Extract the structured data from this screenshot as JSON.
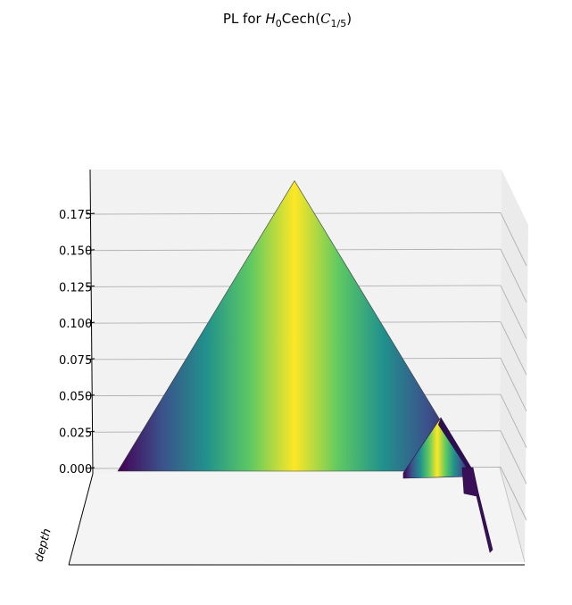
{
  "chart_data": {
    "type": "area",
    "title": "PL for H_0Cech(C_{1/5})",
    "title_parts": {
      "prefix": "PL for ",
      "H": "H",
      "H_sub": "0",
      "mid": "Cech(",
      "C": "C",
      "C_sub": "1/5",
      "suffix": ")"
    },
    "zlabel": "depth",
    "zlim": [
      0,
      0.2
    ],
    "zticks": [
      0.0,
      0.025,
      0.05,
      0.075,
      0.1,
      0.125,
      0.15,
      0.175
    ],
    "zticklabels": [
      "0.000",
      "0.025",
      "0.050",
      "0.075",
      "0.100",
      "0.125",
      "0.150",
      "0.175"
    ],
    "grid": true,
    "colormap": "viridis",
    "colormap_stops": [
      "#440154",
      "#3b528b",
      "#21918c",
      "#5ec962",
      "#fde725"
    ],
    "series": [
      {
        "x": [
          0.0,
          0.2,
          0.4
        ],
        "y": [
          0.0,
          0.198,
          0.0
        ]
      },
      {
        "x": [
          0.25,
          0.27,
          0.29
        ],
        "y": [
          0.0,
          0.038,
          0.0
        ]
      },
      {
        "x": [
          0.29,
          0.3,
          0.31
        ],
        "y": [
          0.0,
          0.006,
          0.0
        ]
      }
    ]
  }
}
